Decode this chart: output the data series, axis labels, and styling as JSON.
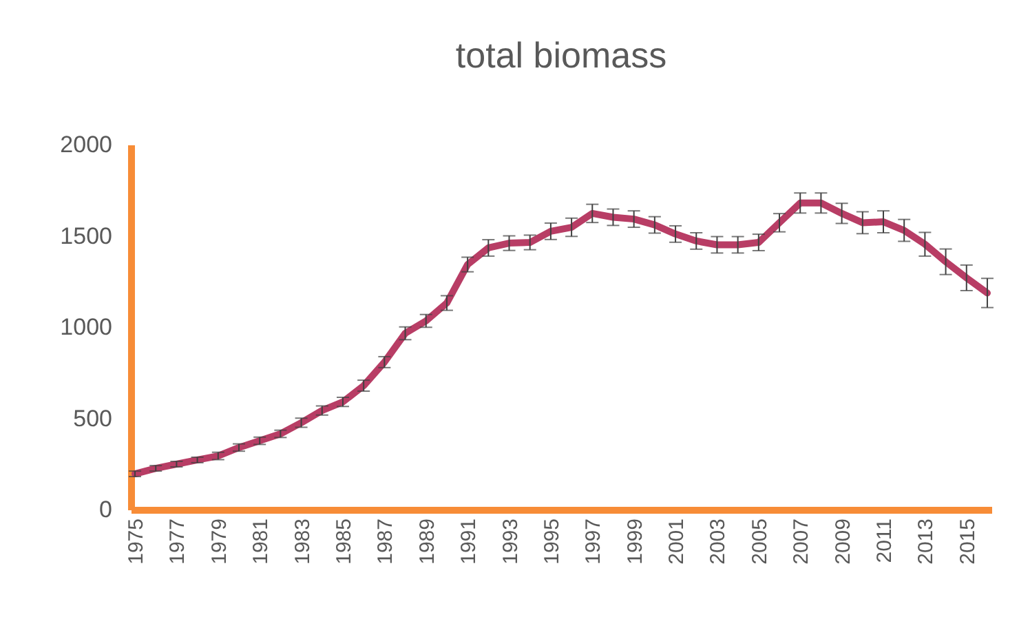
{
  "chart_data": {
    "type": "line",
    "title": "total biomass",
    "categories": [
      "1975",
      null,
      "1977",
      null,
      "1979",
      null,
      "1981",
      null,
      "1983",
      null,
      "1985",
      null,
      "1987",
      null,
      "1989",
      null,
      "1991",
      null,
      "1993",
      null,
      "1995",
      null,
      "1997",
      null,
      "1999",
      null,
      "2001",
      null,
      "2003",
      null,
      "2005",
      null,
      "2007",
      null,
      "2009",
      null,
      "2011",
      null,
      "2013",
      null,
      "2015",
      null
    ],
    "series": [
      {
        "color": "#b83d65",
        "values": [
          196,
          226,
          249,
          272,
          294,
          340,
          377,
          415,
          476,
          543,
          590,
          679,
          808,
          966,
          1034,
          1132,
          1343,
          1434,
          1460,
          1464,
          1525,
          1547,
          1623,
          1602,
          1592,
          1560,
          1510,
          1472,
          1451,
          1451,
          1464,
          1572,
          1680,
          1680,
          1623,
          1572,
          1577,
          1530,
          1454,
          1358,
          1270,
          1187
        ],
        "errors": [
          15,
          15,
          15,
          15,
          20,
          20,
          20,
          20,
          25,
          25,
          25,
          30,
          30,
          35,
          35,
          40,
          40,
          45,
          40,
          40,
          45,
          50,
          50,
          45,
          45,
          45,
          45,
          45,
          45,
          45,
          45,
          50,
          55,
          55,
          55,
          60,
          60,
          60,
          65,
          70,
          70,
          80
        ]
      }
    ],
    "ylim": [
      0,
      2000
    ],
    "yticks": [
      0,
      500,
      1000,
      1500,
      2000
    ],
    "grid": false,
    "marker": "none",
    "line_style": "solid"
  }
}
